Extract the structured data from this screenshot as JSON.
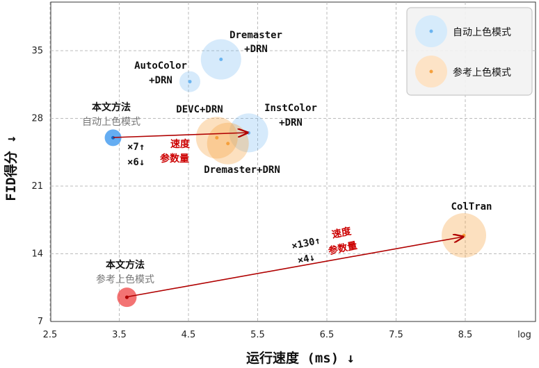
{
  "chart_data": {
    "type": "scatter",
    "xlabel": "运行速度 (ms) ↓",
    "ylabel": "FID得分 ↓",
    "x_unit_label": "log",
    "xlim": [
      2.5,
      9.5
    ],
    "ylim": [
      7,
      39
    ],
    "x_ticks": [
      "2.5",
      "3.5",
      "4.5",
      "5.5",
      "6.5",
      "7.5",
      "8.5"
    ],
    "y_ticks": [
      "7",
      "14",
      "21",
      "28",
      "35"
    ],
    "grid": true,
    "legend_position": "top-right",
    "series": [
      {
        "name": "自动上色模式",
        "color": "#6ab4f0",
        "points": [
          {
            "label": "Dremaster\n+DRN",
            "x": 4.97,
            "y": 34.1
          },
          {
            "label": "AutoColor\n+DRN",
            "x": 4.52,
            "y": 31.8
          },
          {
            "label": "InstColor\n+DRN",
            "x": 5.37,
            "y": 26.5
          },
          {
            "label": "本文方法\n自动上色模式",
            "x": 3.41,
            "y": 26.0
          }
        ]
      },
      {
        "name": "参考上色模式",
        "color": "#f5a03c",
        "points": [
          {
            "label": "DEVC+DRN",
            "x": 4.91,
            "y": 26.0
          },
          {
            "label": "Dremaster+DRN",
            "x": 5.07,
            "y": 25.4
          },
          {
            "label": "ColTran",
            "x": 8.48,
            "y": 15.9
          },
          {
            "label": "本文方法\n参考上色模式",
            "x": 3.61,
            "y": 9.5
          }
        ]
      }
    ],
    "annotations": [
      {
        "text_lines": [
          "×7↑",
          "×6↓"
        ],
        "red_lines": [
          "速度",
          "参数量"
        ]
      },
      {
        "text_lines": [
          "×130↑",
          "×4↓"
        ],
        "red_lines": [
          "速度",
          "参数量"
        ]
      }
    ]
  },
  "legend": {
    "items": [
      {
        "label": "自动上色模式",
        "color": "#6ab4f0"
      },
      {
        "label": "参考上色模式",
        "color": "#f5a03c"
      }
    ]
  }
}
